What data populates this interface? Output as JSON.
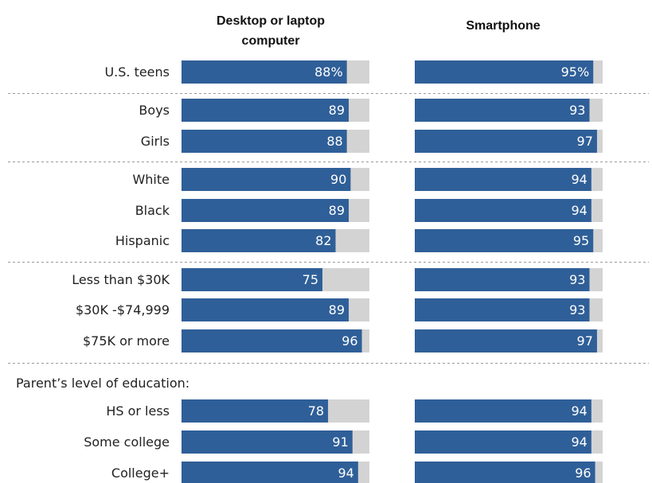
{
  "chart_data": {
    "type": "bar",
    "orientation": "horizontal",
    "columns": [
      {
        "title_lines": [
          "Desktop or laptop",
          "computer"
        ]
      },
      {
        "title_lines": [
          "Smartphone"
        ]
      }
    ],
    "categories": [
      "U.S. teens",
      "Boys",
      "Girls",
      "White",
      "Black",
      "Hispanic",
      "Less than $30K",
      "$30K -$74,999",
      "$75K or more",
      "HS or less",
      "Some college",
      "College+"
    ],
    "series": [
      {
        "column": 0,
        "values": [
          88,
          89,
          88,
          90,
          89,
          82,
          75,
          89,
          96,
          78,
          91,
          94
        ]
      },
      {
        "column": 1,
        "values": [
          95,
          93,
          97,
          94,
          94,
          95,
          93,
          93,
          97,
          94,
          94,
          96
        ]
      }
    ],
    "value_labels": {
      "column_0": [
        "88%",
        "89",
        "88",
        "90",
        "89",
        "82",
        "75",
        "89",
        "96",
        "78",
        "91",
        "94"
      ],
      "column_1": [
        "95%",
        "93",
        "97",
        "94",
        "94",
        "95",
        "93",
        "93",
        "97",
        "94",
        "94",
        "96"
      ]
    },
    "groups": [
      {
        "heading": "",
        "rows": [
          0
        ]
      },
      {
        "heading": "",
        "rows": [
          1,
          2
        ]
      },
      {
        "heading": "",
        "rows": [
          3,
          4,
          5
        ]
      },
      {
        "heading": "",
        "rows": [
          6,
          7,
          8
        ]
      },
      {
        "heading": "Parent’s level of education:",
        "rows": [
          9,
          10,
          11
        ]
      }
    ],
    "xlim": [
      0,
      100
    ],
    "colors": {
      "bar": "#2f5f98",
      "track": "#d3d3d3",
      "value_text": "#ffffff",
      "separator": "#9a9a9a"
    },
    "grid": false,
    "legend": "none"
  }
}
